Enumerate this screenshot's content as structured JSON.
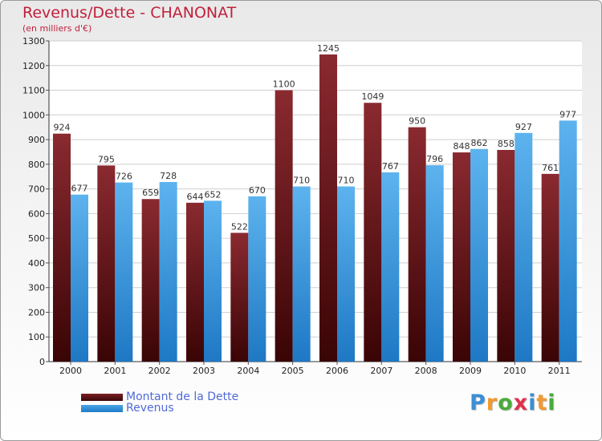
{
  "chart_data": {
    "type": "bar",
    "title": "Revenus/Dette - CHANONAT",
    "subtitle": "(en milliers d'€)",
    "categories": [
      "2000",
      "2001",
      "2002",
      "2003",
      "2004",
      "2005",
      "2006",
      "2007",
      "2008",
      "2009",
      "2010",
      "2011"
    ],
    "series": [
      {
        "name": "Montant de la Dette",
        "color": "#7a1f24",
        "values": [
          924,
          795,
          659,
          644,
          522,
          1100,
          1245,
          1049,
          950,
          848,
          858,
          761
        ]
      },
      {
        "name": "Revenus",
        "color": "#4aa5e6",
        "values": [
          677,
          726,
          728,
          652,
          670,
          710,
          710,
          767,
          796,
          862,
          927,
          977
        ]
      }
    ],
    "ylim": [
      0,
      1300
    ],
    "yticks": [
      0,
      100,
      200,
      300,
      400,
      500,
      600,
      700,
      800,
      900,
      1000,
      1100,
      1200,
      1300
    ],
    "grid": true,
    "legend_position": "bottom-left"
  },
  "logo": {
    "text": "Proxiti",
    "letters": [
      "P",
      "r",
      "o",
      "x",
      "i",
      "t",
      "i"
    ],
    "colors": [
      "#3a8fd6",
      "#f2992e",
      "#4aaa3c",
      "#e0304a",
      "#3a8fd6",
      "#f2992e",
      "#4aaa3c"
    ]
  }
}
